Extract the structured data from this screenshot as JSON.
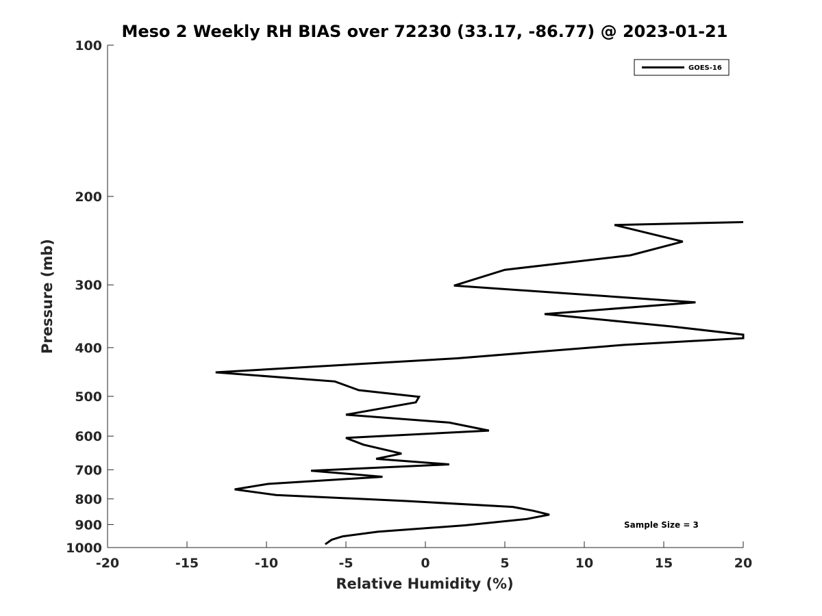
{
  "chart_data": {
    "type": "line",
    "title": "Meso 2 Weekly RH BIAS over 72230 (33.17, -86.77) @ 2023-01-21",
    "xlabel": "Relative Humidity (%)",
    "ylabel": "Pressure (mb)",
    "xlim": [
      -20,
      20
    ],
    "ylim": [
      100,
      1000
    ],
    "y_scale": "log",
    "y_reversed": true,
    "x_ticks": [
      -20,
      -15,
      -10,
      -5,
      0,
      5,
      10,
      15,
      20
    ],
    "x_tick_labels": [
      "-20",
      "-15",
      "-10",
      "-5",
      "0",
      "5",
      "10",
      "15",
      "20"
    ],
    "y_ticks": [
      100,
      200,
      300,
      400,
      500,
      600,
      700,
      800,
      900,
      1000
    ],
    "y_tick_labels": [
      "100",
      "200",
      "300",
      "400",
      "500",
      "600",
      "700",
      "800",
      "900",
      "1000"
    ],
    "grid": false,
    "legend_position": "top-right",
    "annotation": "Sample Size = 3",
    "series": [
      {
        "name": "GOES-16",
        "color": "#000000",
        "points": [
          [
            20.0,
            225
          ],
          [
            11.9,
            228
          ],
          [
            16.2,
            246
          ],
          [
            12.9,
            262
          ],
          [
            5.0,
            280
          ],
          [
            1.8,
            301
          ],
          [
            17.0,
            325
          ],
          [
            7.5,
            343
          ],
          [
            15.5,
            363
          ],
          [
            20.0,
            377
          ],
          [
            20.0,
            383
          ],
          [
            12.5,
            395
          ],
          [
            2.0,
            420
          ],
          [
            -13.2,
            448
          ],
          [
            -5.7,
            467
          ],
          [
            -4.2,
            486
          ],
          [
            -0.4,
            501
          ],
          [
            -0.6,
            514
          ],
          [
            -5.0,
            544
          ],
          [
            1.5,
            564
          ],
          [
            4.0,
            585
          ],
          [
            -5.0,
            605
          ],
          [
            -3.9,
            624
          ],
          [
            -1.5,
            650
          ],
          [
            -3.1,
            666
          ],
          [
            1.5,
            683
          ],
          [
            -7.2,
            703
          ],
          [
            -2.7,
            723
          ],
          [
            -9.9,
            747
          ],
          [
            -12.0,
            766
          ],
          [
            -9.4,
            786
          ],
          [
            -1.2,
            808
          ],
          [
            5.5,
            830
          ],
          [
            6.8,
            845
          ],
          [
            7.8,
            860
          ],
          [
            6.4,
            877
          ],
          [
            2.5,
            903
          ],
          [
            -3.0,
            930
          ],
          [
            -5.2,
            950
          ],
          [
            -5.9,
            965
          ],
          [
            -6.3,
            985
          ]
        ]
      }
    ]
  }
}
